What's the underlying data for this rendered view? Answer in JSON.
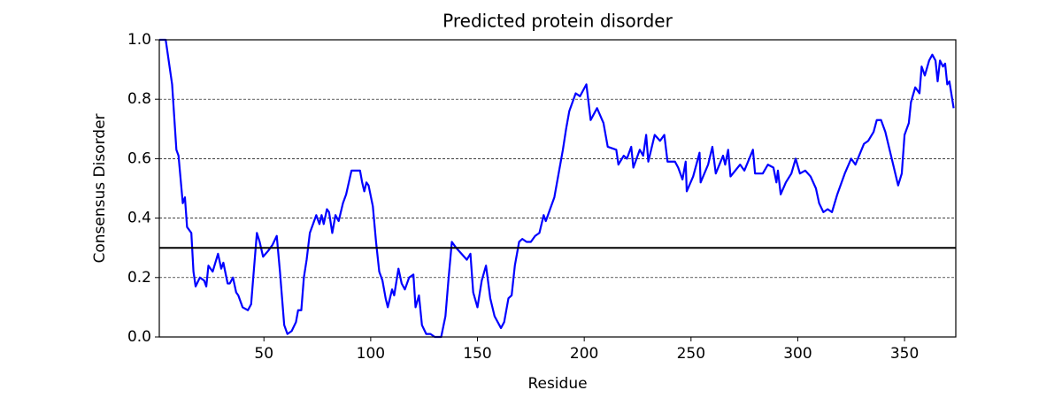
{
  "chart_data": {
    "type": "line",
    "title": "Predicted protein disorder",
    "xlabel": "Residue",
    "ylabel": "Consensus Disorder",
    "x": [
      1,
      4,
      5,
      7,
      9,
      10,
      12,
      13,
      14,
      16,
      17,
      18,
      20,
      22,
      23,
      24,
      26,
      28.5,
      30,
      31,
      33,
      34,
      35.5,
      37,
      38,
      40,
      42.5,
      44,
      45,
      46.7,
      48,
      49.6,
      52,
      54,
      56,
      57.5,
      59.5,
      61,
      63,
      65,
      66,
      67.5,
      68.7,
      70,
      71.5,
      73,
      74.5,
      76,
      77,
      78,
      79.5,
      80.5,
      82,
      83.5,
      85,
      87,
      88.5,
      91,
      93,
      95,
      96,
      97,
      98,
      99,
      101,
      102.5,
      104,
      105.5,
      107,
      108,
      110,
      111,
      113,
      114.5,
      116,
      118,
      120,
      121,
      122.6,
      124,
      126,
      128,
      130,
      133,
      135,
      136.5,
      138,
      140,
      142.5,
      145,
      146.7,
      148,
      150,
      152,
      154,
      156,
      158,
      161,
      162.5,
      164.5,
      166,
      167.5,
      169.5,
      171,
      173,
      175,
      177,
      179,
      181,
      182,
      184,
      186,
      188,
      190,
      191.5,
      193,
      196,
      198,
      201,
      203,
      206,
      209,
      211,
      215,
      216,
      218.5,
      220,
      222,
      223,
      226,
      227.6,
      229,
      230,
      233,
      235.5,
      237.5,
      239,
      242.5,
      244,
      246,
      247.5,
      248,
      251,
      254,
      254.5,
      258,
      260,
      261.6,
      265,
      266,
      267.4,
      268.5,
      273,
      275,
      279,
      280,
      283.6,
      286,
      288.6,
      290,
      290.7,
      292,
      294.4,
      297,
      299,
      301,
      303.5,
      306,
      308.5,
      310,
      312,
      314,
      316,
      318.5,
      322,
      325,
      327,
      331,
      333,
      335.5,
      337,
      339,
      341,
      344,
      347,
      348.7,
      350,
      352,
      353,
      355,
      357,
      358,
      359.5,
      361.5,
      363,
      364.5,
      365.5,
      366.6,
      368,
      369,
      370,
      371,
      373
    ],
    "values": [
      1.0,
      1.0,
      0.95,
      0.85,
      0.63,
      0.61,
      0.45,
      0.47,
      0.37,
      0.35,
      0.22,
      0.17,
      0.2,
      0.19,
      0.17,
      0.24,
      0.22,
      0.28,
      0.23,
      0.25,
      0.18,
      0.18,
      0.2,
      0.15,
      0.14,
      0.1,
      0.09,
      0.11,
      0.2,
      0.35,
      0.32,
      0.27,
      0.29,
      0.31,
      0.34,
      0.22,
      0.04,
      0.01,
      0.02,
      0.05,
      0.09,
      0.09,
      0.2,
      0.26,
      0.35,
      0.38,
      0.41,
      0.38,
      0.41,
      0.38,
      0.43,
      0.42,
      0.35,
      0.41,
      0.39,
      0.45,
      0.48,
      0.56,
      0.56,
      0.56,
      0.52,
      0.49,
      0.52,
      0.51,
      0.44,
      0.32,
      0.22,
      0.19,
      0.13,
      0.1,
      0.16,
      0.14,
      0.23,
      0.18,
      0.16,
      0.2,
      0.21,
      0.1,
      0.14,
      0.04,
      0.01,
      0.01,
      0.0,
      0.0,
      0.07,
      0.2,
      0.32,
      0.3,
      0.28,
      0.26,
      0.28,
      0.15,
      0.1,
      0.19,
      0.24,
      0.13,
      0.07,
      0.03,
      0.05,
      0.13,
      0.14,
      0.24,
      0.32,
      0.33,
      0.32,
      0.32,
      0.34,
      0.35,
      0.41,
      0.39,
      0.43,
      0.47,
      0.55,
      0.63,
      0.7,
      0.76,
      0.82,
      0.81,
      0.85,
      0.73,
      0.77,
      0.72,
      0.64,
      0.63,
      0.58,
      0.61,
      0.6,
      0.64,
      0.57,
      0.63,
      0.61,
      0.68,
      0.59,
      0.68,
      0.66,
      0.68,
      0.59,
      0.59,
      0.57,
      0.53,
      0.59,
      0.49,
      0.54,
      0.62,
      0.52,
      0.58,
      0.64,
      0.55,
      0.61,
      0.58,
      0.63,
      0.54,
      0.58,
      0.56,
      0.63,
      0.55,
      0.55,
      0.58,
      0.57,
      0.52,
      0.56,
      0.48,
      0.52,
      0.55,
      0.6,
      0.55,
      0.56,
      0.54,
      0.5,
      0.45,
      0.42,
      0.43,
      0.42,
      0.48,
      0.55,
      0.6,
      0.58,
      0.65,
      0.66,
      0.69,
      0.73,
      0.73,
      0.69,
      0.6,
      0.51,
      0.55,
      0.68,
      0.72,
      0.79,
      0.84,
      0.82,
      0.91,
      0.88,
      0.93,
      0.95,
      0.93,
      0.86,
      0.93,
      0.91,
      0.92,
      0.85,
      0.86,
      0.77
    ],
    "color": "#0000ff",
    "threshold": 0.3,
    "threshold_color": "#000000",
    "xlim": [
      1,
      374
    ],
    "ylim": [
      0,
      1
    ],
    "xticks": [
      50,
      100,
      150,
      200,
      250,
      300,
      350
    ],
    "yticks": [
      {
        "value": 0,
        "label": "0.0"
      },
      0.2,
      0.4,
      0.6,
      0.8,
      {
        "value": 1,
        "label": "1.0"
      }
    ],
    "grid": true
  }
}
